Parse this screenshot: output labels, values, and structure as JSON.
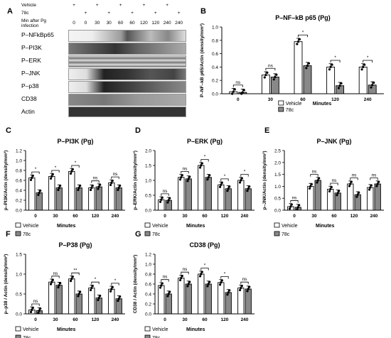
{
  "panel_letters": [
    "A",
    "B",
    "C",
    "D",
    "E",
    "F",
    "G"
  ],
  "blot": {
    "header_rows": [
      {
        "label": "Vehicle",
        "marks": [
          "+",
          "",
          "+",
          "",
          "+",
          "",
          "+",
          "",
          "+",
          ""
        ]
      },
      {
        "label": "78c",
        "marks": [
          "",
          "+",
          "",
          "+",
          "",
          "+",
          "",
          "+",
          "",
          "+"
        ]
      }
    ],
    "minutes_label": "Min after Pg infection",
    "minutes": [
      "0",
      "0",
      "30",
      "30",
      "60",
      "60",
      "120",
      "120",
      "240",
      "240"
    ],
    "bands": [
      "P–NFkBp65",
      "P–PI3K",
      "P–ERK",
      "P–JNK",
      "P–p38",
      "CD38",
      "Actin"
    ]
  },
  "legend": {
    "vehicle": "Vehicle",
    "drug": "78c"
  },
  "colors": {
    "vehicle": "#ffffff",
    "drug": "#888888",
    "dot": "#000000"
  },
  "chart_data": [
    {
      "id": "B",
      "type": "bar",
      "title": "P–NF–kB p65 (Pg)",
      "ylabel": "P–NF–kB p65/Actin (density/mm²)",
      "xlabel": "Minutes",
      "categories": [
        "0",
        "30",
        "60",
        "120",
        "240"
      ],
      "ylim": [
        0,
        1.0
      ],
      "yticks": [
        "0.0",
        "0.2",
        "0.4",
        "0.6",
        "0.8",
        "1.0"
      ],
      "series": [
        {
          "name": "Vehicle",
          "values": [
            0.03,
            0.28,
            0.78,
            0.4,
            0.4
          ]
        },
        {
          "name": "78c",
          "values": [
            0.02,
            0.25,
            0.42,
            0.12,
            0.13
          ]
        }
      ],
      "significance": [
        "ns",
        "ns",
        "*",
        "*",
        "*"
      ]
    },
    {
      "id": "C",
      "type": "bar",
      "title": "P–PI3K (Pg)",
      "ylabel": "p–PI3K/Actin (density/mm²)",
      "xlabel": "Minutes",
      "categories": [
        "0",
        "30",
        "60",
        "120",
        "240"
      ],
      "ylim": [
        0,
        1.2
      ],
      "yticks": [
        "0.0",
        "0.2",
        "0.4",
        "0.6",
        "0.8",
        "1.0",
        "1.2"
      ],
      "series": [
        {
          "name": "Vehicle",
          "values": [
            0.65,
            0.68,
            0.78,
            0.45,
            0.55
          ]
        },
        {
          "name": "78c",
          "values": [
            0.35,
            0.45,
            0.45,
            0.47,
            0.45
          ]
        }
      ],
      "significance": [
        "*",
        "*",
        "*",
        "ns",
        "ns"
      ]
    },
    {
      "id": "D",
      "type": "bar",
      "title": "P–ERK (Pg)",
      "ylabel": "p–ERK/Actin (density/mm²)",
      "xlabel": "Minutes",
      "categories": [
        "0",
        "30",
        "60",
        "120",
        "240"
      ],
      "ylim": [
        0,
        2.0
      ],
      "yticks": [
        "0.0",
        "0.5",
        "1.0",
        "1.5",
        "2.0"
      ],
      "series": [
        {
          "name": "Vehicle",
          "values": [
            0.35,
            1.1,
            1.5,
            0.85,
            1.0
          ]
        },
        {
          "name": "78c",
          "values": [
            0.33,
            1.05,
            1.1,
            0.72,
            0.72
          ]
        }
      ],
      "significance": [
        "ns",
        "ns",
        "*",
        "*",
        "*"
      ]
    },
    {
      "id": "E",
      "type": "bar",
      "title": "P–JNK (Pg)",
      "ylabel": "p–JNK/Actin (density/mm²)",
      "xlabel": "Minutes",
      "categories": [
        "0",
        "30",
        "60",
        "120",
        "240"
      ],
      "ylim": [
        0,
        2.5
      ],
      "yticks": [
        "0.0",
        "0.5",
        "1.0",
        "1.5",
        "2.0",
        "2.5"
      ],
      "series": [
        {
          "name": "Vehicle",
          "values": [
            0.15,
            1.0,
            0.88,
            1.1,
            0.95
          ]
        },
        {
          "name": "78c",
          "values": [
            0.12,
            1.25,
            0.72,
            0.65,
            1.1
          ]
        }
      ],
      "significance": [
        "ns",
        "ns",
        "ns",
        "ns",
        "ns"
      ]
    },
    {
      "id": "F",
      "type": "bar",
      "title": "P–P38 (Pg)",
      "ylabel": "p–p38 / Actin (density/mm²)",
      "xlabel": "Minutes",
      "categories": [
        "0",
        "30",
        "60",
        "120",
        "240"
      ],
      "ylim": [
        0,
        1.5
      ],
      "yticks": [
        "0.0",
        "0.5",
        "1.0",
        "1.5"
      ],
      "series": [
        {
          "name": "Vehicle",
          "values": [
            0.1,
            0.8,
            0.88,
            0.65,
            0.62
          ]
        },
        {
          "name": "78c",
          "values": [
            0.08,
            0.72,
            0.5,
            0.4,
            0.38
          ]
        }
      ],
      "significance": [
        "ns",
        "ns",
        "**",
        "*",
        "*"
      ]
    },
    {
      "id": "G",
      "type": "bar",
      "title": "CD38 (Pg)",
      "ylabel": "CD38 / Actin (density/mm²)",
      "xlabel": "Minutes",
      "categories": [
        "0",
        "30",
        "60",
        "120",
        "240"
      ],
      "ylim": [
        0,
        1.2
      ],
      "yticks": [
        "0.0",
        "0.2",
        "0.4",
        "0.6",
        "0.8",
        "1.0",
        "1.2"
      ],
      "series": [
        {
          "name": "Vehicle",
          "values": [
            0.57,
            0.72,
            0.8,
            0.63,
            0.52
          ]
        },
        {
          "name": "78c",
          "values": [
            0.4,
            0.6,
            0.6,
            0.43,
            0.5
          ]
        }
      ],
      "significance": [
        "ns",
        "ns",
        "*",
        "*",
        "ns"
      ]
    }
  ]
}
